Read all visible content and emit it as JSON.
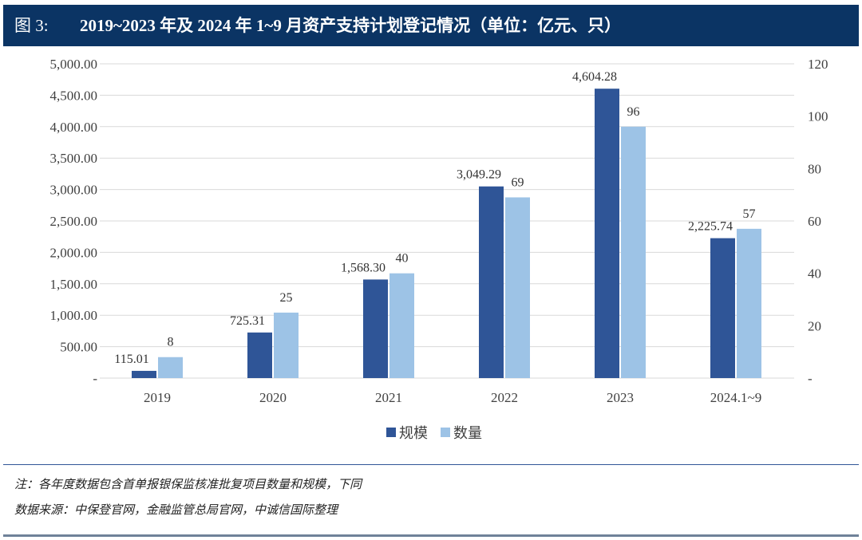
{
  "header": {
    "label": "图 3:",
    "title": "2019~2023 年及 2024 年 1~9 月资产支持计划登记情况（单位：亿元、只）"
  },
  "chart_data": {
    "type": "bar",
    "categories": [
      "2019",
      "2020",
      "2021",
      "2022",
      "2023",
      "2024.1~9"
    ],
    "series": [
      {
        "name": "规模",
        "axis": "left",
        "color": "#2f5597",
        "values": [
          115.01,
          725.31,
          1568.3,
          3049.29,
          4604.28,
          2225.74
        ],
        "labels": [
          "115.01",
          "725.31",
          "1,568.30",
          "3,049.29",
          "4,604.28",
          "2,225.74"
        ]
      },
      {
        "name": "数量",
        "axis": "right",
        "color": "#9dc3e6",
        "values": [
          8,
          25,
          40,
          69,
          96,
          57
        ],
        "labels": [
          "8",
          "25",
          "40",
          "69",
          "96",
          "57"
        ]
      }
    ],
    "left_axis": {
      "ylim": [
        0,
        5000
      ],
      "ticks": [
        "-",
        "500.00",
        "1,000.00",
        "1,500.00",
        "2,000.00",
        "2,500.00",
        "3,000.00",
        "3,500.00",
        "4,000.00",
        "4,500.00",
        "5,000.00"
      ]
    },
    "right_axis": {
      "ylim": [
        0,
        120
      ],
      "ticks": [
        "-",
        "20",
        "40",
        "60",
        "80",
        "100",
        "120"
      ]
    },
    "grid": true,
    "legend": "bottom"
  },
  "notes": {
    "note": "注：各年度数据包含首单报银保监核准批复项目数量和规模，下同",
    "source": "数据来源：中保登官网，金融监管总局官网，中诚信国际整理"
  }
}
